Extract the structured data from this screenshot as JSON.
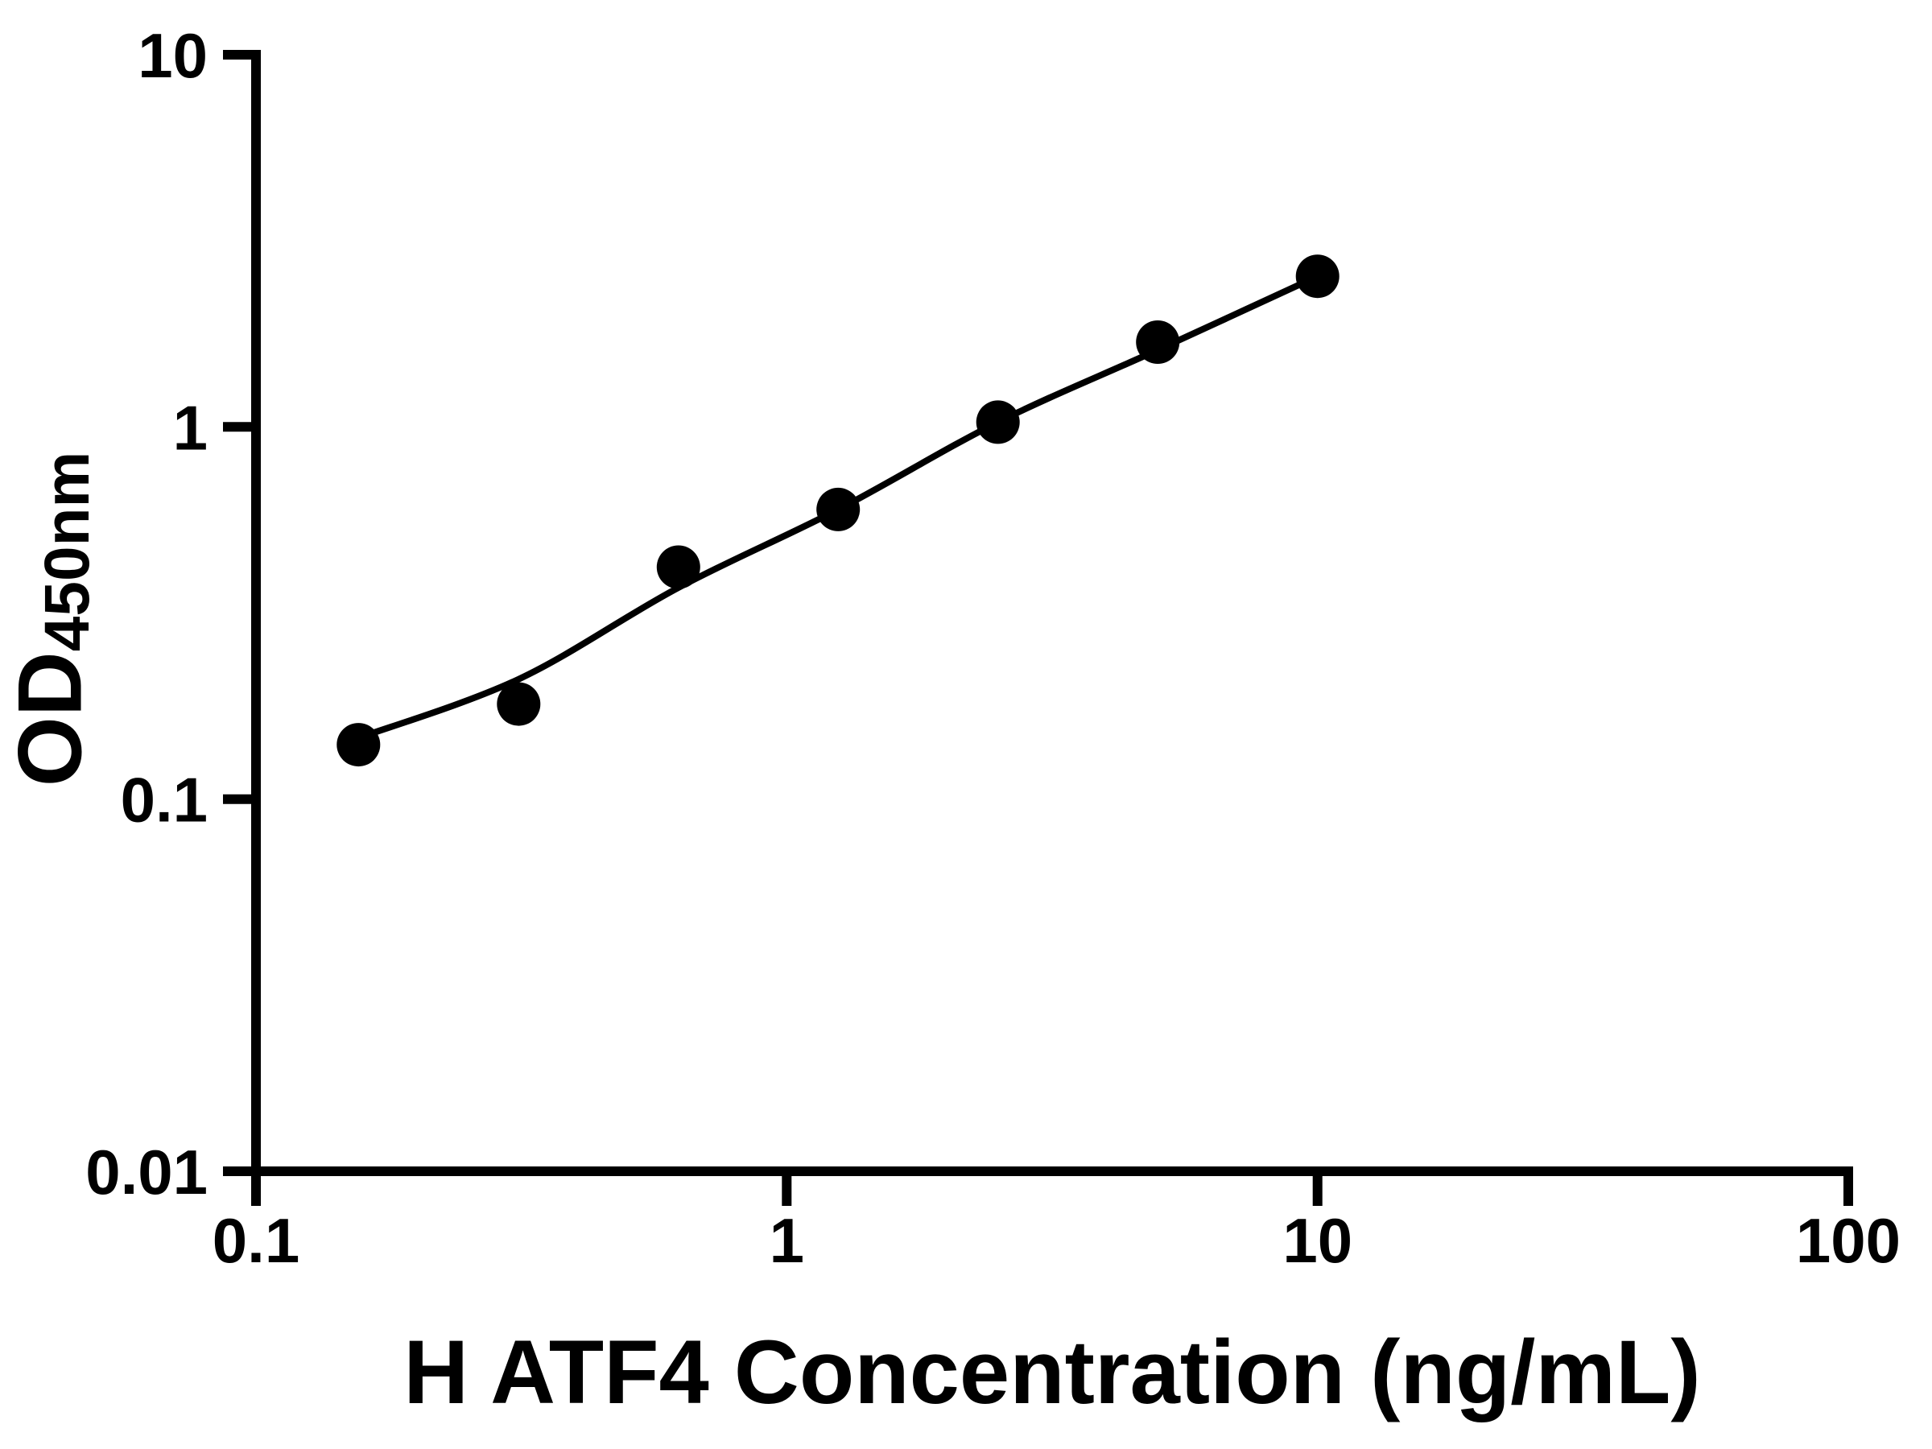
{
  "figure": {
    "background_color": "#ffffff",
    "foreground_color": "#000000"
  },
  "chart_data": {
    "type": "scatter",
    "title": "",
    "xlabel": "H ATF4 Concentration (ng/mL)",
    "ylabel_main": "OD",
    "ylabel_sub": "450nm",
    "x_scale": "log",
    "y_scale": "log",
    "xlim": [
      0.1,
      100
    ],
    "ylim": [
      0.01,
      10
    ],
    "x_ticks": [
      0.1,
      1,
      10,
      100
    ],
    "x_tick_labels": [
      "0.1",
      "1",
      "10",
      "100"
    ],
    "y_ticks": [
      10,
      1,
      0.1,
      0.01
    ],
    "y_tick_labels": [
      "10",
      "1",
      "0.1",
      "0.01"
    ],
    "grid": false,
    "legend": null,
    "marker_color": "#000000",
    "line_color": "#000000",
    "series": [
      {
        "name": "standard-points",
        "type": "scatter",
        "marker": "circle",
        "color": "#000000",
        "x": [
          0.156,
          0.3125,
          0.625,
          1.25,
          2.5,
          5,
          10
        ],
        "y": [
          0.14,
          0.18,
          0.42,
          0.6,
          1.03,
          1.69,
          2.54
        ]
      },
      {
        "name": "fit-curve",
        "type": "line",
        "color": "#000000",
        "x": [
          0.156,
          0.3125,
          0.625,
          1.25,
          2.5,
          5,
          10
        ],
        "y": [
          0.146,
          0.21,
          0.37,
          0.6,
          1.03,
          1.61,
          2.54
        ]
      }
    ]
  }
}
